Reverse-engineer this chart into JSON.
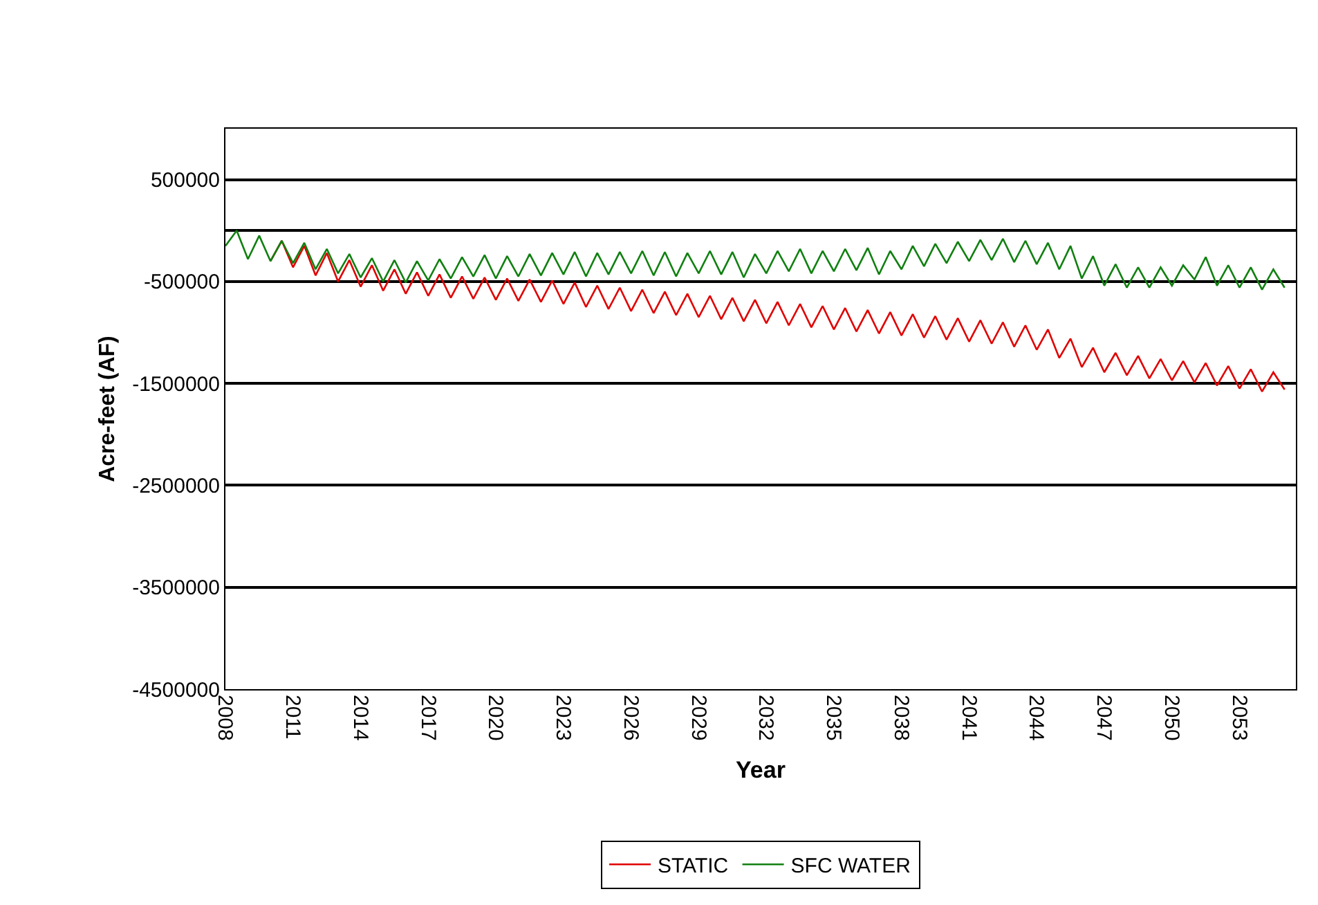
{
  "chart_data": {
    "type": "line",
    "xlabel": "Year",
    "ylabel": "Acre-feet (AF)",
    "x": [
      2008,
      2008.5,
      2009,
      2009.5,
      2010,
      2010.5,
      2011,
      2011.5,
      2012,
      2012.5,
      2013,
      2013.5,
      2014,
      2014.5,
      2015,
      2015.5,
      2016,
      2016.5,
      2017,
      2017.5,
      2018,
      2018.5,
      2019,
      2019.5,
      2020,
      2020.5,
      2021,
      2021.5,
      2022,
      2022.5,
      2023,
      2023.5,
      2024,
      2024.5,
      2025,
      2025.5,
      2026,
      2026.5,
      2027,
      2027.5,
      2028,
      2028.5,
      2029,
      2029.5,
      2030,
      2030.5,
      2031,
      2031.5,
      2032,
      2032.5,
      2033,
      2033.5,
      2034,
      2034.5,
      2035,
      2035.5,
      2036,
      2036.5,
      2037,
      2037.5,
      2038,
      2038.5,
      2039,
      2039.5,
      2040,
      2040.5,
      2041,
      2041.5,
      2042,
      2042.5,
      2043,
      2043.5,
      2044,
      2044.5,
      2045,
      2045.5,
      2046,
      2046.5,
      2047,
      2047.5,
      2048,
      2048.5,
      2049,
      2049.5,
      2050,
      2050.5,
      2051,
      2051.5,
      2052,
      2052.5,
      2053,
      2053.5,
      2054,
      2054.5,
      2055
    ],
    "series": [
      {
        "name": "STATIC",
        "color": "#e00000",
        "values": [
          null,
          null,
          null,
          null,
          -300000,
          -100000,
          -360000,
          -150000,
          -440000,
          -220000,
          -500000,
          -290000,
          -550000,
          -340000,
          -590000,
          -380000,
          -620000,
          -410000,
          -640000,
          -430000,
          -660000,
          -450000,
          -670000,
          -460000,
          -680000,
          -470000,
          -690000,
          -480000,
          -700000,
          -490000,
          -720000,
          -510000,
          -750000,
          -540000,
          -770000,
          -560000,
          -790000,
          -580000,
          -810000,
          -600000,
          -830000,
          -620000,
          -850000,
          -640000,
          -870000,
          -660000,
          -890000,
          -680000,
          -910000,
          -700000,
          -930000,
          -720000,
          -950000,
          -740000,
          -970000,
          -760000,
          -990000,
          -780000,
          -1010000,
          -800000,
          -1030000,
          -820000,
          -1050000,
          -840000,
          -1070000,
          -860000,
          -1090000,
          -880000,
          -1110000,
          -900000,
          -1140000,
          -930000,
          -1170000,
          -970000,
          -1250000,
          -1060000,
          -1340000,
          -1150000,
          -1390000,
          -1200000,
          -1420000,
          -1230000,
          -1450000,
          -1260000,
          -1470000,
          -1280000,
          -1490000,
          -1300000,
          -1520000,
          -1330000,
          -1550000,
          -1360000,
          -1580000,
          -1390000,
          -1560000
        ]
      },
      {
        "name": "SFC WATER",
        "color": "#108010",
        "values": [
          -150000,
          0,
          -280000,
          -50000,
          -300000,
          -100000,
          -320000,
          -120000,
          -380000,
          -180000,
          -420000,
          -230000,
          -460000,
          -270000,
          -500000,
          -290000,
          -510000,
          -300000,
          -490000,
          -280000,
          -470000,
          -260000,
          -450000,
          -240000,
          -470000,
          -250000,
          -450000,
          -230000,
          -440000,
          -220000,
          -430000,
          -210000,
          -450000,
          -220000,
          -430000,
          -210000,
          -420000,
          -200000,
          -440000,
          -210000,
          -450000,
          -220000,
          -420000,
          -200000,
          -430000,
          -210000,
          -460000,
          -230000,
          -420000,
          -200000,
          -400000,
          -180000,
          -420000,
          -200000,
          -400000,
          -180000,
          -390000,
          -170000,
          -430000,
          -200000,
          -380000,
          -150000,
          -350000,
          -130000,
          -320000,
          -110000,
          -300000,
          -90000,
          -290000,
          -80000,
          -310000,
          -100000,
          -330000,
          -120000,
          -380000,
          -150000,
          -470000,
          -250000,
          -540000,
          -330000,
          -560000,
          -360000,
          -560000,
          -360000,
          -540000,
          -340000,
          -480000,
          -260000,
          -540000,
          -340000,
          -560000,
          -360000,
          -580000,
          -380000,
          -560000
        ]
      }
    ],
    "xlim": [
      2008,
      2055.5
    ],
    "xticks": [
      2008,
      2011,
      2014,
      2017,
      2020,
      2023,
      2026,
      2029,
      2032,
      2035,
      2038,
      2041,
      2044,
      2047,
      2050,
      2053
    ],
    "ylim": [
      -4500000,
      1000000
    ],
    "yticks": [
      500000,
      -500000,
      -1500000,
      -2500000,
      -3500000,
      -4500000
    ],
    "grid": "y",
    "legend": "bottom",
    "marker": "none",
    "line_style": "solid"
  }
}
